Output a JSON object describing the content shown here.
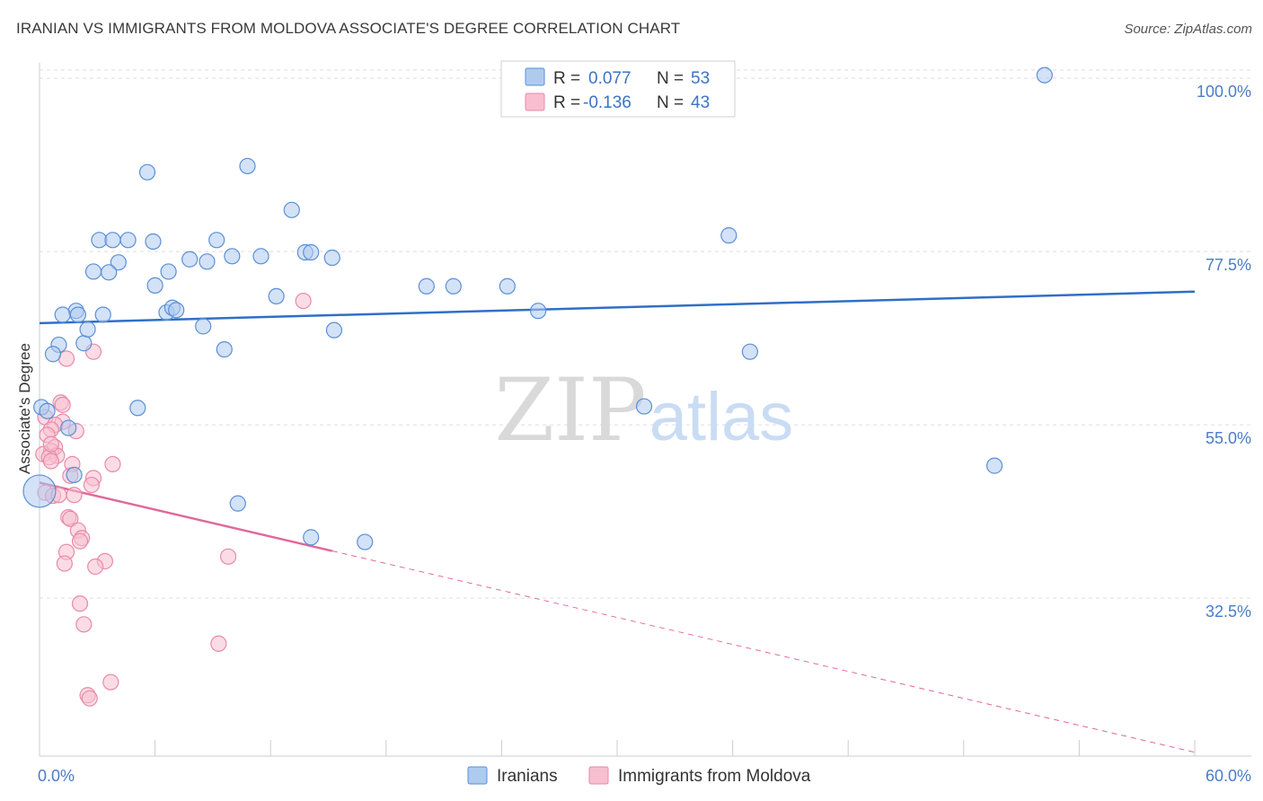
{
  "title": "IRANIAN VS IMMIGRANTS FROM MOLDOVA ASSOCIATE'S DEGREE CORRELATION CHART",
  "source": "Source: ZipAtlas.com",
  "watermark": {
    "zip": "ZIP",
    "atlas": "atlas"
  },
  "colors": {
    "blue_fill": "#aecbef",
    "blue_stroke": "#5b8fd6",
    "blue_line": "#2f6fc7",
    "pink_fill": "#f7bfd0",
    "pink_stroke": "#e88aa8",
    "pink_line": "#e0689a",
    "grid": "#dddddd",
    "tick_text": "#4a7cc7"
  },
  "chart_data": {
    "type": "scatter",
    "xlabel": "",
    "ylabel": "Associate's Degree",
    "xlim": [
      0,
      60
    ],
    "ylim": [
      12,
      102
    ],
    "x_tick_labels": {
      "min": "0.0%",
      "max": "60.0%"
    },
    "y_ticks": [
      {
        "value": 100,
        "label": "100.0%"
      },
      {
        "value": 77.5,
        "label": "77.5%"
      },
      {
        "value": 55,
        "label": "55.0%"
      },
      {
        "value": 32.5,
        "label": "32.5%"
      }
    ],
    "legend": [
      {
        "r_label": "R =",
        "r_value": "0.077",
        "n_label": "N =",
        "n_value": "53"
      },
      {
        "r_label": "R =",
        "r_value": "-0.136",
        "n_label": "N =",
        "n_value": "43"
      }
    ],
    "series": [
      {
        "name": "Iranians",
        "trend": {
          "x0": 0,
          "y0": 68.2,
          "x1": 60,
          "y1": 72.3,
          "solid_until": 60
        },
        "points": [
          [
            52.2,
            100.4
          ],
          [
            5.6,
            87.8
          ],
          [
            10.8,
            88.6
          ],
          [
            13.1,
            82.9
          ],
          [
            35.8,
            79.6
          ],
          [
            3.1,
            79.0
          ],
          [
            3.8,
            79.0
          ],
          [
            4.6,
            79.0
          ],
          [
            5.9,
            78.8
          ],
          [
            9.2,
            79.0
          ],
          [
            13.8,
            77.4
          ],
          [
            14.1,
            77.4
          ],
          [
            7.8,
            76.5
          ],
          [
            10.0,
            76.9
          ],
          [
            11.5,
            76.9
          ],
          [
            8.7,
            76.2
          ],
          [
            4.1,
            76.1
          ],
          [
            2.8,
            74.9
          ],
          [
            3.6,
            74.8
          ],
          [
            6.7,
            74.9
          ],
          [
            15.2,
            76.7
          ],
          [
            6.0,
            73.1
          ],
          [
            20.1,
            73.0
          ],
          [
            21.5,
            73.0
          ],
          [
            24.3,
            73.0
          ],
          [
            12.3,
            71.7
          ],
          [
            6.6,
            69.6
          ],
          [
            6.9,
            70.2
          ],
          [
            7.1,
            69.9
          ],
          [
            1.9,
            69.8
          ],
          [
            2.0,
            69.3
          ],
          [
            1.2,
            69.3
          ],
          [
            3.3,
            69.3
          ],
          [
            25.9,
            69.8
          ],
          [
            1.0,
            65.4
          ],
          [
            2.3,
            65.6
          ],
          [
            2.5,
            67.4
          ],
          [
            8.5,
            67.8
          ],
          [
            15.3,
            67.3
          ],
          [
            0.7,
            64.2
          ],
          [
            9.6,
            64.8
          ],
          [
            36.9,
            64.5
          ],
          [
            5.1,
            57.2
          ],
          [
            31.4,
            57.4
          ],
          [
            0.1,
            57.3
          ],
          [
            1.5,
            54.6
          ],
          [
            49.6,
            49.7
          ],
          [
            0.0,
            46.4
          ],
          [
            10.3,
            44.8
          ],
          [
            14.1,
            40.4
          ],
          [
            16.9,
            39.8
          ],
          [
            1.8,
            48.5
          ],
          [
            0.4,
            56.8
          ]
        ]
      },
      {
        "name": "Immigrants from Moldova",
        "trend": {
          "x0": 0,
          "y0": 47.5,
          "x1": 60,
          "y1": 12.5,
          "solid_until": 15.2
        },
        "points": [
          [
            13.7,
            71.1
          ],
          [
            2.8,
            64.5
          ],
          [
            1.4,
            63.6
          ],
          [
            1.1,
            57.9
          ],
          [
            1.2,
            57.6
          ],
          [
            0.3,
            56.0
          ],
          [
            1.2,
            55.4
          ],
          [
            0.8,
            55.0
          ],
          [
            1.9,
            54.2
          ],
          [
            0.6,
            54.4
          ],
          [
            0.4,
            53.7
          ],
          [
            0.8,
            52.1
          ],
          [
            0.6,
            51.6
          ],
          [
            0.9,
            51.0
          ],
          [
            0.2,
            51.2
          ],
          [
            0.5,
            50.8
          ],
          [
            0.6,
            50.3
          ],
          [
            1.7,
            49.9
          ],
          [
            3.8,
            49.9
          ],
          [
            1.6,
            48.4
          ],
          [
            2.8,
            48.1
          ],
          [
            2.7,
            47.2
          ],
          [
            0.3,
            46.2
          ],
          [
            0.7,
            45.8
          ],
          [
            1.0,
            45.9
          ],
          [
            1.5,
            43.0
          ],
          [
            1.6,
            42.8
          ],
          [
            2.0,
            41.3
          ],
          [
            2.2,
            40.3
          ],
          [
            2.1,
            39.9
          ],
          [
            1.4,
            38.5
          ],
          [
            3.4,
            37.3
          ],
          [
            1.3,
            37.0
          ],
          [
            2.9,
            36.6
          ],
          [
            9.8,
            37.9
          ],
          [
            2.1,
            31.8
          ],
          [
            2.3,
            29.1
          ],
          [
            9.3,
            26.6
          ],
          [
            3.7,
            21.6
          ],
          [
            2.5,
            19.9
          ],
          [
            2.6,
            19.5
          ],
          [
            0.6,
            52.5
          ],
          [
            1.8,
            45.9
          ]
        ]
      }
    ]
  }
}
